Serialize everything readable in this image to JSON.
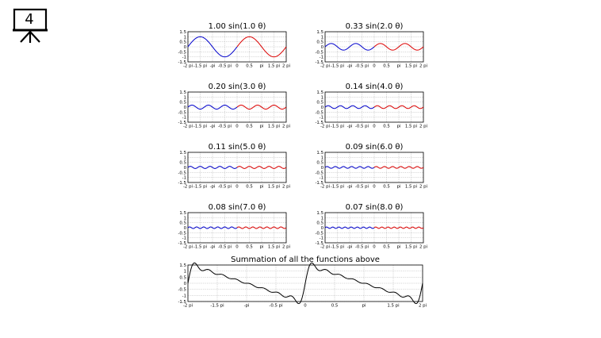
{
  "slide": {
    "number": "4",
    "icon": "presentation-board-icon"
  },
  "colors": {
    "left_half": "#0000cc",
    "right_half": "#dd0000",
    "sum": "#000000",
    "grid": "#9a9a9a"
  },
  "chart_data": [
    {
      "type": "line",
      "title": "1.00 sin(1.0 θ)",
      "amplitude": 1.0,
      "frequency": 1,
      "xlim": [
        -6.2832,
        6.2832
      ],
      "ylim": [
        -1.5,
        1.5
      ],
      "yticks": [
        "1.5",
        "1",
        "0.5",
        "0",
        "-0.5",
        "-1",
        "-1.5"
      ],
      "xticks": [
        "-2 pi",
        "-1.5 pi",
        "-pi",
        "-0.5 pi",
        "0",
        "0.5",
        "pi",
        "1.5 pi",
        "2 pi"
      ],
      "grid": true
    },
    {
      "type": "line",
      "title": "0.33 sin(2.0 θ)",
      "amplitude": 0.33,
      "frequency": 2,
      "xlim": [
        -6.2832,
        6.2832
      ],
      "ylim": [
        -1.5,
        1.5
      ],
      "yticks": [
        "1.5",
        "1",
        "0.5",
        "0",
        "-0.5",
        "-1",
        "-1.5"
      ],
      "xticks": [
        "-2 pi",
        "-1.5 pi",
        "-pi",
        "-0.5 pi",
        "0",
        "0.5",
        "pi",
        "1.5 pi",
        "2 pi"
      ],
      "grid": true
    },
    {
      "type": "line",
      "title": "0.20 sin(3.0 θ)",
      "amplitude": 0.2,
      "frequency": 3,
      "xlim": [
        -6.2832,
        6.2832
      ],
      "ylim": [
        -1.5,
        1.5
      ],
      "yticks": [
        "1.5",
        "1",
        "0.5",
        "0",
        "-0.5",
        "-1",
        "-1.5"
      ],
      "xticks": [
        "-2 pi",
        "-1.5 pi",
        "-pi",
        "-0.5 pi",
        "0",
        "0.5",
        "pi",
        "1.5 pi",
        "2 pi"
      ],
      "grid": true
    },
    {
      "type": "line",
      "title": "0.14 sin(4.0 θ)",
      "amplitude": 0.14,
      "frequency": 4,
      "xlim": [
        -6.2832,
        6.2832
      ],
      "ylim": [
        -1.5,
        1.5
      ],
      "yticks": [
        "1.5",
        "1",
        "0.5",
        "0",
        "-0.5",
        "-1",
        "-1.5"
      ],
      "xticks": [
        "-2 pi",
        "-1.5 pi",
        "-pi",
        "-0.5 pi",
        "0",
        "0.5",
        "pi",
        "1.5 pi",
        "2 pi"
      ],
      "grid": true
    },
    {
      "type": "line",
      "title": "0.11 sin(5.0 θ)",
      "amplitude": 0.11,
      "frequency": 5,
      "xlim": [
        -6.2832,
        6.2832
      ],
      "ylim": [
        -1.5,
        1.5
      ],
      "yticks": [
        "1.5",
        "1",
        "0.5",
        "0",
        "-0.5",
        "-1",
        "-1.5"
      ],
      "xticks": [
        "-2 pi",
        "-1.5 pi",
        "-pi",
        "-0.5 pi",
        "0",
        "0.5",
        "pi",
        "1.5 pi",
        "2 pi"
      ],
      "grid": true
    },
    {
      "type": "line",
      "title": "0.09 sin(6.0 θ)",
      "amplitude": 0.09,
      "frequency": 6,
      "xlim": [
        -6.2832,
        6.2832
      ],
      "ylim": [
        -1.5,
        1.5
      ],
      "yticks": [
        "1.5",
        "1",
        "0.5",
        "0",
        "-0.5",
        "-1",
        "-1.5"
      ],
      "xticks": [
        "-2 pi",
        "-1.5 pi",
        "-pi",
        "-0.5 pi",
        "0",
        "0.5",
        "pi",
        "1.5 pi",
        "2 pi"
      ],
      "grid": true
    },
    {
      "type": "line",
      "title": "0.08 sin(7.0 θ)",
      "amplitude": 0.08,
      "frequency": 7,
      "xlim": [
        -6.2832,
        6.2832
      ],
      "ylim": [
        -1.5,
        1.5
      ],
      "yticks": [
        "1.5",
        "1",
        "0.5",
        "0",
        "-0.5",
        "-1",
        "-1.5"
      ],
      "xticks": [
        "-2 pi",
        "-1.5 pi",
        "-pi",
        "-0.5 pi",
        "0",
        "0.5",
        "pi",
        "1.5 pi",
        "2 pi"
      ],
      "grid": true
    },
    {
      "type": "line",
      "title": "0.07 sin(8.0 θ)",
      "amplitude": 0.07,
      "frequency": 8,
      "xlim": [
        -6.2832,
        6.2832
      ],
      "ylim": [
        -1.5,
        1.5
      ],
      "yticks": [
        "1.5",
        "1",
        "0.5",
        "0",
        "-0.5",
        "-1",
        "-1.5"
      ],
      "xticks": [
        "-2 pi",
        "-1.5 pi",
        "-pi",
        "-0.5 pi",
        "0",
        "0.5",
        "pi",
        "1.5 pi",
        "2 pi"
      ],
      "grid": true
    },
    {
      "type": "line",
      "title": "Summation of all the functions above",
      "sum_of_terms": 8,
      "xlim": [
        -6.2832,
        6.2832
      ],
      "ylim": [
        -1.5,
        1.5
      ],
      "yticks": [
        "1.5",
        "1",
        "0.5",
        "0",
        "-0.5",
        "-1",
        "-1.5"
      ],
      "xticks": [
        "-2 pi",
        "-1.5 pi",
        "-pi",
        "-0.5 pi",
        "0",
        "0.5",
        "pi",
        "1.5 pi",
        "2 pi"
      ],
      "grid": true
    }
  ]
}
